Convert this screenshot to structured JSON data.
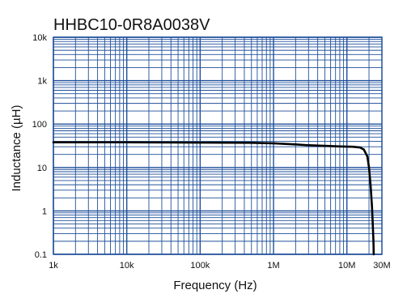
{
  "chart_data": {
    "type": "line",
    "title": "HHBC10-0R8A0038V",
    "xlabel": "Frequency (Hz)",
    "ylabel": "Inductance (µH)",
    "xscale": "log",
    "yscale": "log",
    "xlim": [
      1000,
      30000000
    ],
    "ylim": [
      0.1,
      10000
    ],
    "grid": true,
    "x_ticks": [
      {
        "value": 1000,
        "label": "1k"
      },
      {
        "value": 10000,
        "label": "10k"
      },
      {
        "value": 100000,
        "label": "100k"
      },
      {
        "value": 1000000,
        "label": "1M"
      },
      {
        "value": 10000000,
        "label": "10M"
      },
      {
        "value": 30000000,
        "label": "30M"
      }
    ],
    "y_ticks": [
      {
        "value": 0.1,
        "label": "0.1"
      },
      {
        "value": 1,
        "label": "1"
      },
      {
        "value": 10,
        "label": "10"
      },
      {
        "value": 100,
        "label": "100"
      },
      {
        "value": 1000,
        "label": "1k"
      },
      {
        "value": 10000,
        "label": "10k"
      }
    ],
    "series": [
      {
        "color": "#000000",
        "x": [
          1000,
          10000,
          100000,
          500000,
          1000000,
          2000000,
          3000000,
          5000000,
          8000000,
          12000000,
          15000000,
          17000000,
          19000000,
          20000000,
          21000000,
          22000000,
          22500000,
          23000000,
          23200000
        ],
        "y": [
          38,
          38,
          37.5,
          37,
          36,
          34,
          32.5,
          31.5,
          30.5,
          30,
          29,
          26,
          18,
          10,
          4,
          1.2,
          0.5,
          0.2,
          0.1
        ]
      }
    ],
    "colors": {
      "grid": "#1f4f9a",
      "line": "#000000",
      "frame": "#1f4f9a"
    }
  }
}
